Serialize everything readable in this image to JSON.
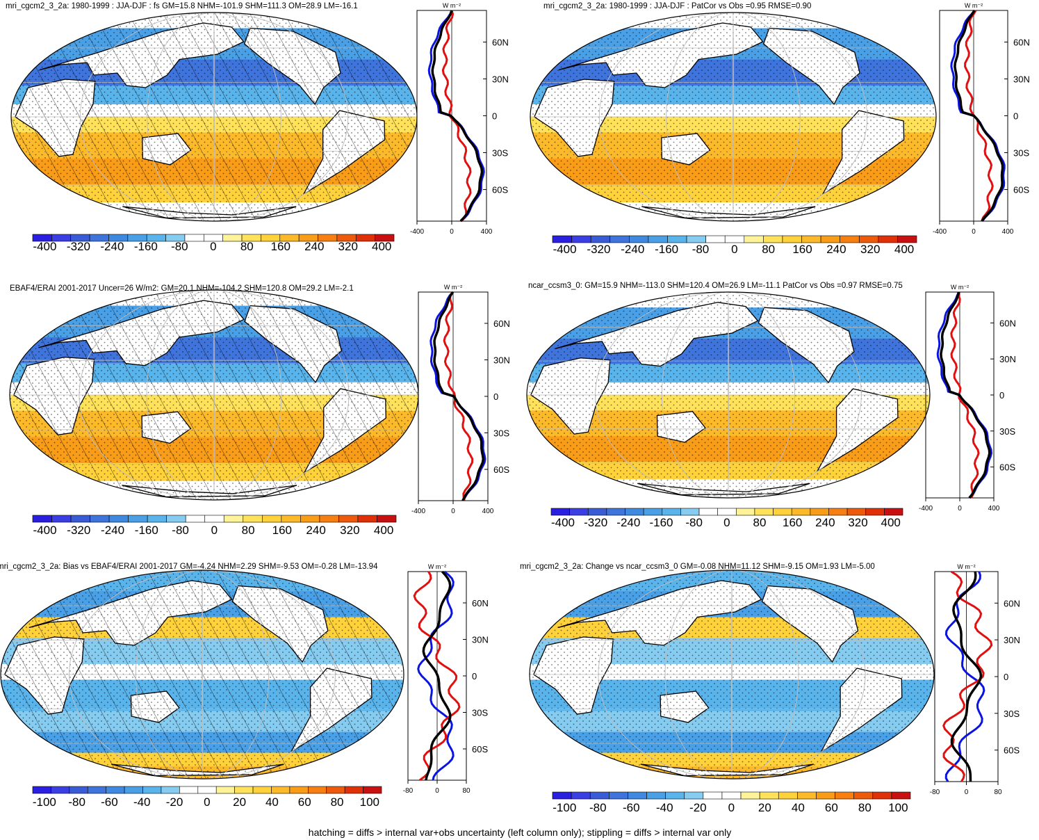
{
  "colors": {
    "bin_colors": [
      "#2a1fe0",
      "#3b3fe3",
      "#3a5bd6",
      "#3f74dd",
      "#3f8ae0",
      "#49a0e6",
      "#5ab4ec",
      "#86cbf0",
      "#ffffff",
      "#ffffff",
      "#fff39a",
      "#ffe259",
      "#ffd23c",
      "#fcb92a",
      "#f99c18",
      "#f77e10",
      "#ee5a0c",
      "#e03008",
      "#c81010"
    ],
    "model_line": "#000000",
    "line_a": "#0a14e0",
    "line_b": "#e01010",
    "land": "#ffffff",
    "grid": "#bdbdbd"
  },
  "panels": [
    {
      "id": "p1",
      "title": "mri_cgcm2_3_2a: 1980-1999 : JJA-DJF : fs GM=15.8 NHM=-101.9 SHM=111.3 OM=28.9 LM=-16.1",
      "colorbar_labels": [
        "-400",
        "-320",
        "-240",
        "-160",
        "-80",
        "0",
        "80",
        "160",
        "240",
        "320",
        "400"
      ],
      "profile_units": "W m⁻²",
      "profile_xticks": [
        "-400",
        "0",
        "400"
      ],
      "lat_labels": [
        "60N",
        "30N",
        "0",
        "30S",
        "60S"
      ],
      "hatching": true
    },
    {
      "id": "p2",
      "title": "mri_cgcm2_3_2a: 1980-1999 : JJA-DJF : PatCor vs Obs =0.95 RMSE=0.90",
      "colorbar_labels": [
        "-400",
        "-320",
        "-240",
        "-160",
        "-80",
        "0",
        "80",
        "160",
        "240",
        "320",
        "400"
      ],
      "profile_units": "W m⁻²",
      "profile_xticks": [
        "-400",
        "0",
        "400"
      ],
      "lat_labels": [
        "60N",
        "30N",
        "0",
        "30S",
        "60S"
      ],
      "hatching": false
    },
    {
      "id": "p3",
      "title": "EBAF4/ERAI 2001-2017 Uncer=26 W/m2: GM=20.1 NHM=-104.2 SHM=120.8 OM=29.2 LM=-2.1",
      "colorbar_labels": [
        "-400",
        "-320",
        "-240",
        "-160",
        "-80",
        "0",
        "80",
        "160",
        "240",
        "320",
        "400"
      ],
      "profile_units": "W m⁻²",
      "profile_xticks": [
        "-400",
        "0",
        "400"
      ],
      "lat_labels": [
        "60N",
        "30N",
        "0",
        "30S",
        "60S"
      ],
      "hatching": true
    },
    {
      "id": "p4",
      "title": "ncar_ccsm3_0: GM=15.9 NHM=-113.0 SHM=120.4 OM=26.9 LM=-11.1 PatCor vs Obs =0.97 RMSE=0.75",
      "colorbar_labels": [
        "-400",
        "-320",
        "-240",
        "-160",
        "-80",
        "0",
        "80",
        "160",
        "240",
        "320",
        "400"
      ],
      "profile_units": "W m⁻²",
      "profile_xticks": [
        "-400",
        "0",
        "400"
      ],
      "lat_labels": [
        "60N",
        "30N",
        "0",
        "30S",
        "60S"
      ],
      "hatching": false
    },
    {
      "id": "p5",
      "title": "mri_cgcm2_3_2a: Bias vs EBAF4/ERAI 2001-2017 GM=-4.24 NHM=2.29 SHM=-9.53 OM=-0.28 LM=-13.94",
      "colorbar_labels": [
        "-100",
        "-80",
        "-60",
        "-40",
        "-20",
        "0",
        "20",
        "40",
        "60",
        "80",
        "100"
      ],
      "profile_units": "W m⁻²",
      "profile_xticks": [
        "-80",
        "0",
        "80"
      ],
      "lat_labels": [
        "60N",
        "30N",
        "0",
        "30S",
        "60S"
      ],
      "hatching": true
    },
    {
      "id": "p6",
      "title": "mri_cgcm2_3_2a: Change vs ncar_ccsm3_0 GM=-0.08 NHM=11.12 SHM=-9.15 OM=1.93 LM=-5.00",
      "colorbar_labels": [
        "-100",
        "-80",
        "-60",
        "-40",
        "-20",
        "0",
        "20",
        "40",
        "60",
        "80",
        "100"
      ],
      "profile_units": "W m⁻²",
      "profile_xticks": [
        "-80",
        "0",
        "80"
      ],
      "lat_labels": [
        "60N",
        "30N",
        "0",
        "30S",
        "60S"
      ],
      "hatching": false
    }
  ],
  "footer": "hatching = diffs > internal var+obs uncertainty (left column only); stippling = diffs > internal var only"
}
